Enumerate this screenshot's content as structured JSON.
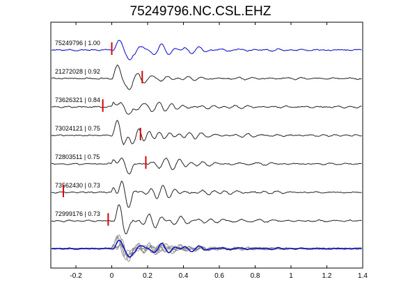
{
  "chart_data": {
    "type": "line",
    "title": "75249796.NC.CSL.EHZ",
    "xlabel": "",
    "ylabel": "",
    "xlim": [
      -0.34,
      1.4
    ],
    "x_ticks": [
      "-0.2",
      "0",
      "0.2",
      "0.4",
      "0.6",
      "0.8",
      "1",
      "1.2",
      "1.4"
    ],
    "x_tick_values": [
      -0.2,
      0,
      0.2,
      0.4,
      0.6,
      0.8,
      1.0,
      1.2,
      1.4
    ],
    "grid": false,
    "reference_color": "#0000cc",
    "trace_color": "#222222",
    "overlay_color": "#8a8a8a",
    "pick_color": "#dd0000",
    "series": [
      {
        "id": "75249796",
        "cc": "1.00",
        "label": "75249796 | 1.00",
        "pick_time": 0.0,
        "is_reference": true
      },
      {
        "id": "21272028",
        "cc": "0.92",
        "label": "21272028 | 0.92",
        "pick_time": 0.17,
        "is_reference": false
      },
      {
        "id": "73626321",
        "cc": "0.84",
        "label": "73626321 | 0.84",
        "pick_time": -0.05,
        "is_reference": false
      },
      {
        "id": "73024121",
        "cc": "0.75",
        "label": "73024121 | 0.75",
        "pick_time": 0.16,
        "is_reference": false
      },
      {
        "id": "72803511",
        "cc": "0.75",
        "label": "72803511 | 0.75",
        "pick_time": 0.19,
        "is_reference": false
      },
      {
        "id": "73562430",
        "cc": "0.73",
        "label": "73562430 | 0.73",
        "pick_time": -0.27,
        "is_reference": false
      },
      {
        "id": "72999176",
        "cc": "0.73",
        "label": "72999176 | 0.73",
        "pick_time": -0.02,
        "is_reference": false
      }
    ]
  }
}
